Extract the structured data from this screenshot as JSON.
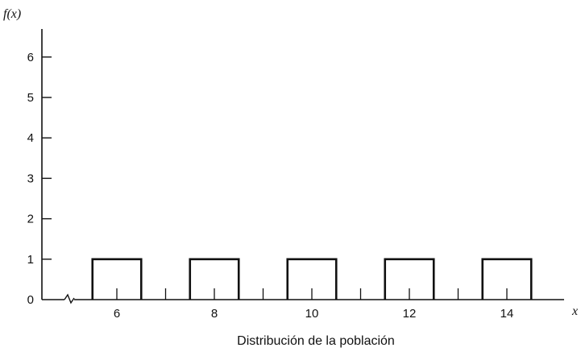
{
  "chart_data": {
    "type": "bar",
    "title": "",
    "caption": "Distribución de la población",
    "ylabel": "f(x)",
    "xlabel": "x",
    "x": [
      6,
      8,
      10,
      12,
      14
    ],
    "values": [
      1,
      1,
      1,
      1,
      1
    ],
    "ylim": [
      0,
      7
    ],
    "xlim": [
      4.4,
      15.4
    ],
    "bar_width": 1,
    "yticks": [
      0,
      1,
      2,
      3,
      4,
      5,
      6
    ],
    "xticks_labeled": [
      6,
      8,
      10,
      12,
      14
    ],
    "xticks_minor": [
      6,
      7,
      8,
      9,
      10,
      11,
      12,
      13,
      14
    ],
    "axis_break": true,
    "grid": false,
    "legend": "none"
  }
}
